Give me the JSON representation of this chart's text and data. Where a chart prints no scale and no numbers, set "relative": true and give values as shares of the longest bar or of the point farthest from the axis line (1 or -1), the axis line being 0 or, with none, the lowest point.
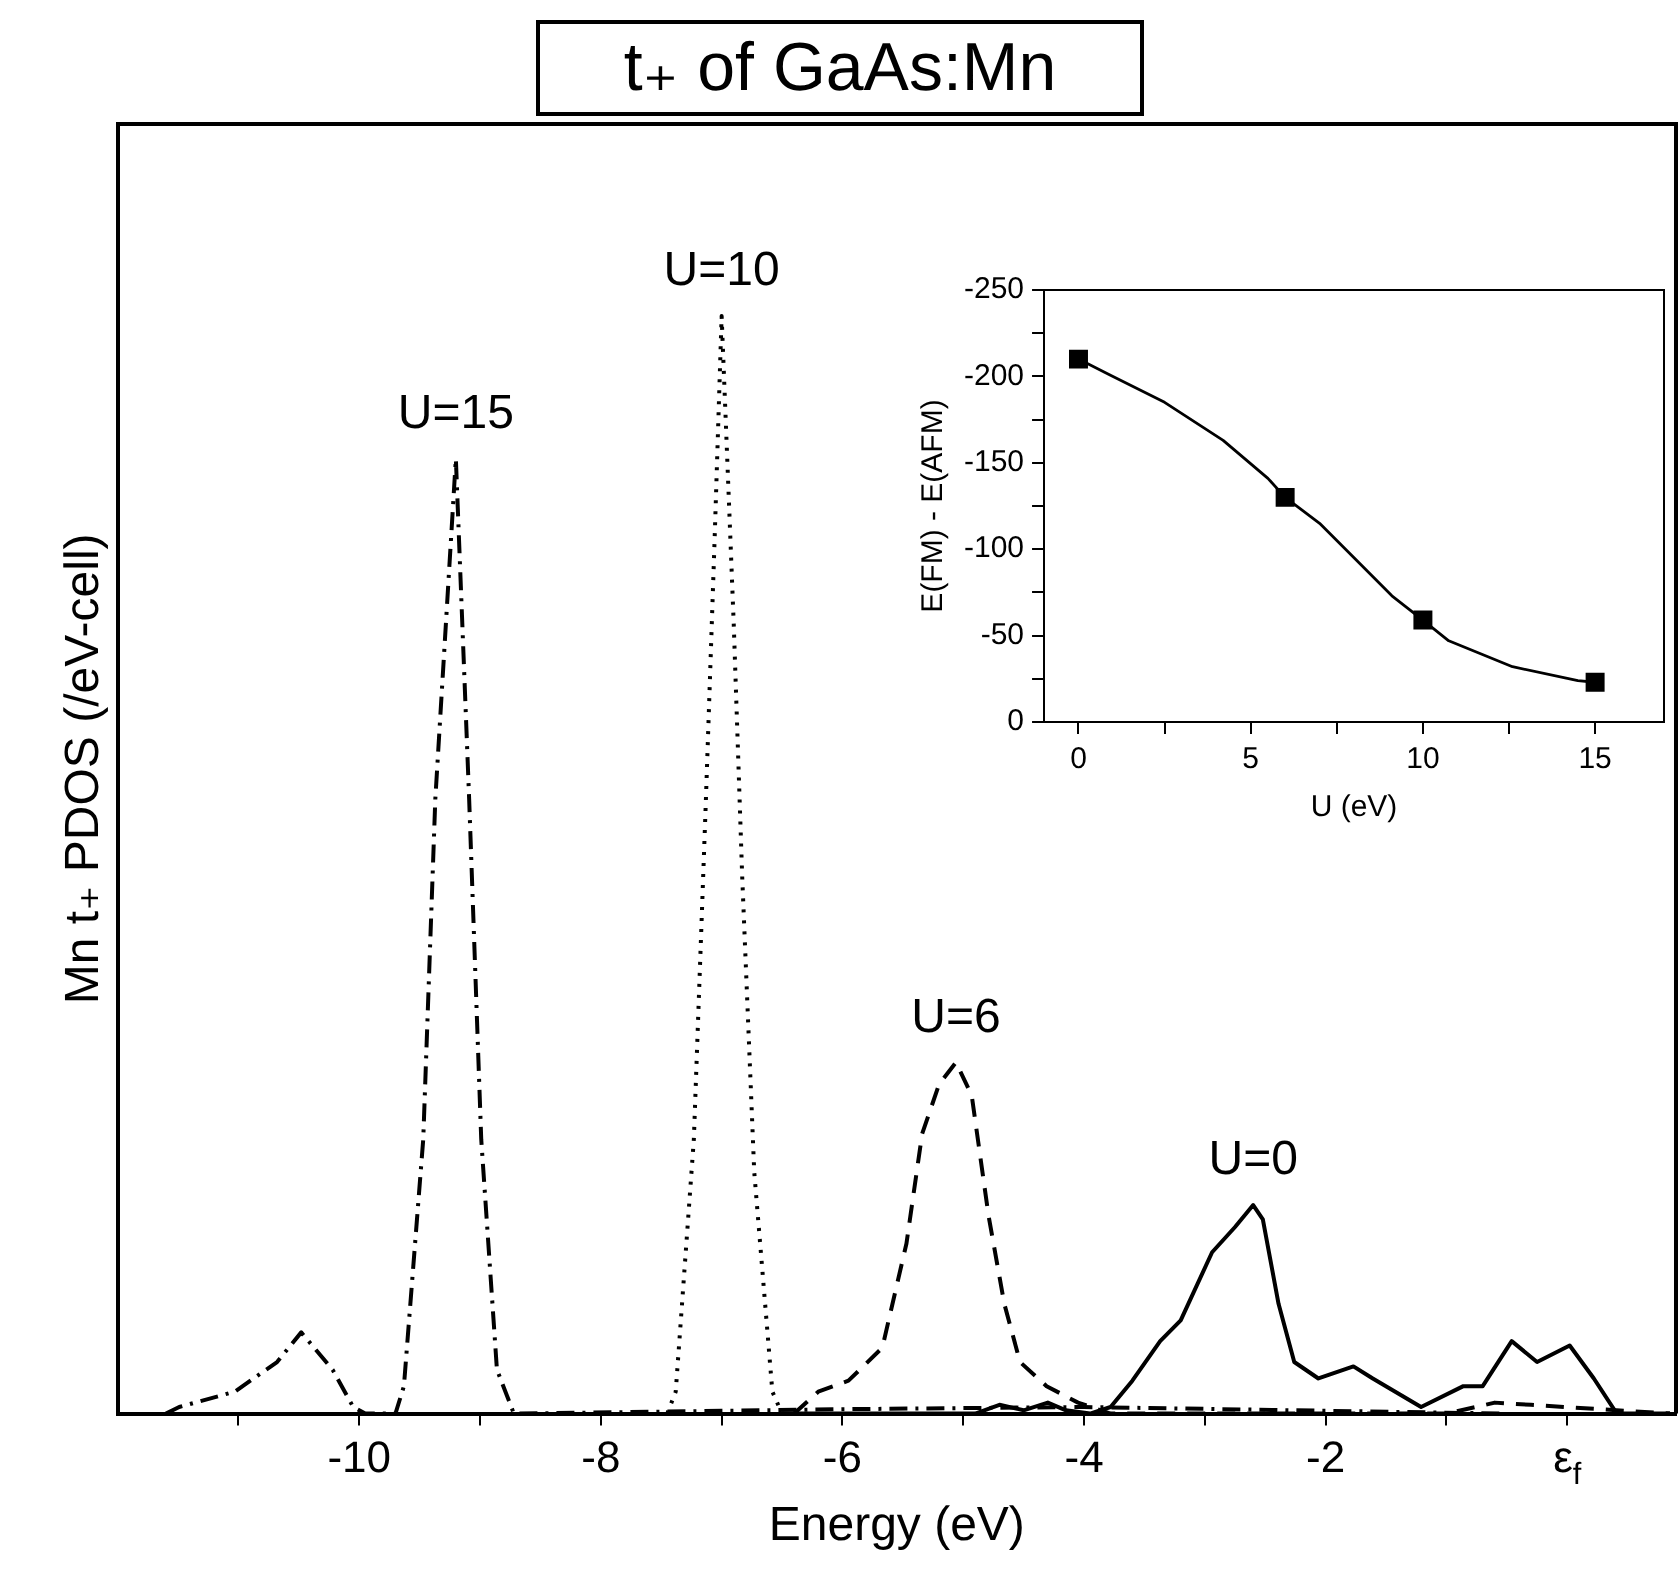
{
  "chart_data": [
    {
      "type": "line",
      "title": "t₊ of GaAs:Mn",
      "xlabel": "Energy (eV)",
      "ylabel": "Mn t₊ PDOS (/eV-cell)",
      "relative": true,
      "xlim": [
        -12,
        0.9
      ],
      "xticks": [
        {
          "value": -11,
          "label": null
        },
        -10,
        {
          "value": -9,
          "label": null
        },
        -8,
        {
          "value": -7,
          "label": null
        },
        -6,
        {
          "value": -5,
          "label": null
        },
        -4,
        {
          "value": -3,
          "label": null
        },
        -2,
        {
          "value": -1,
          "label": null
        },
        {
          "value": 0,
          "label": "ε$_{f}$"
        }
      ],
      "legend": false,
      "grid": false,
      "marker": "none",
      "series": [
        {
          "name": "U=15",
          "color": "#000000",
          "line_style": "dashdot",
          "x": [
            -11.6,
            -11.49,
            -11.03,
            -10.68,
            -10.48,
            -10.22,
            -10.05,
            -9.95,
            -9.7,
            -9.63,
            -9.47,
            -9.37,
            -9.2,
            -9.09,
            -8.99,
            -8.86,
            -8.72,
            -6.0,
            -4.0,
            -0.5
          ],
          "values": [
            0,
            0.006,
            0.02,
            0.047,
            0.074,
            0.04,
            0.006,
            0,
            0,
            0.025,
            0.25,
            0.56,
            0.87,
            0.56,
            0.25,
            0.04,
            0,
            0.004,
            0.006,
            0
          ]
        },
        {
          "name": "U=10",
          "color": "#000000",
          "line_style": "dotted",
          "x": [
            -7.45,
            -7.38,
            -7.23,
            -7.13,
            -7.06,
            -7.0,
            -6.9,
            -6.83,
            -6.73,
            -6.58,
            -6.5
          ],
          "values": [
            0,
            0.02,
            0.25,
            0.56,
            0.79,
            1.0,
            0.72,
            0.49,
            0.22,
            0.02,
            0
          ]
        },
        {
          "name": "U=6",
          "color": "#000000",
          "line_style": "dashed",
          "x": [
            -6.4,
            -6.2,
            -5.95,
            -5.67,
            -5.47,
            -5.34,
            -5.2,
            -5.06,
            -4.93,
            -4.79,
            -4.66,
            -4.53,
            -4.31,
            -4.05,
            -3.78,
            -1.0,
            -0.6,
            -0.3,
            0.85
          ],
          "values": [
            0,
            0.02,
            0.03,
            0.06,
            0.155,
            0.255,
            0.3,
            0.32,
            0.29,
            0.18,
            0.1,
            0.047,
            0.025,
            0.01,
            0,
            0,
            0.01,
            0.008,
            0
          ]
        },
        {
          "name": "U=0",
          "color": "#000000",
          "line_style": "solid",
          "x": [
            -6.5,
            -4.9,
            -4.7,
            -4.5,
            -4.3,
            -4.15,
            -3.95,
            -3.78,
            -3.6,
            -3.37,
            -3.2,
            -2.94,
            -2.75,
            -2.6,
            -2.52,
            -2.39,
            -2.26,
            -2.06,
            -1.77,
            -1.61,
            -1.21,
            -0.86,
            -0.7,
            -0.46,
            -0.25,
            0.02,
            0.22,
            0.41,
            0.85
          ],
          "values": [
            0,
            0,
            0.008,
            0.003,
            0.01,
            0.003,
            0,
            0.006,
            0.03,
            0.066,
            0.085,
            0.147,
            0.17,
            0.19,
            0.177,
            0.1,
            0.047,
            0.032,
            0.043,
            0.032,
            0.006,
            0.025,
            0.025,
            0.066,
            0.047,
            0.062,
            0.032,
            0,
            0
          ]
        }
      ]
    },
    {
      "type": "scatter",
      "xlabel": "U (eV)",
      "ylabel": "E(FM) - E(AFM)",
      "xlim": [
        -1,
        17
      ],
      "ylim": [
        0,
        -250
      ],
      "xticks": [
        0,
        {
          "value": 2.5,
          "label": null
        },
        5,
        {
          "value": 7.5,
          "label": null
        },
        10,
        {
          "value": 12.5,
          "label": null
        },
        15
      ],
      "yticks": [
        0,
        {
          "value": -25,
          "label": null
        },
        -50,
        {
          "value": -75,
          "label": null
        },
        -100,
        {
          "value": -125,
          "label": null
        },
        -150,
        {
          "value": -175,
          "label": null
        },
        -200,
        {
          "value": -225,
          "label": null
        },
        -250
      ],
      "legend": false,
      "grid": false,
      "marker": "square",
      "series": [
        {
          "color": "#000000",
          "x": [
            0,
            6,
            10,
            15
          ],
          "values": [
            -210,
            -130,
            -59,
            -23
          ]
        },
        {
          "type": "line",
          "color": "#000000",
          "marker": "none",
          "x": [
            0,
            0.9,
            2.5,
            4.2,
            5.5,
            6,
            7,
            8,
            9.1,
            10,
            10.75,
            12.6,
            14.5,
            15
          ],
          "values": [
            -210,
            -201,
            -185,
            -163,
            -141,
            -130,
            -115,
            -95,
            -73,
            -59,
            -47,
            -32,
            -24,
            -23
          ]
        }
      ]
    }
  ]
}
